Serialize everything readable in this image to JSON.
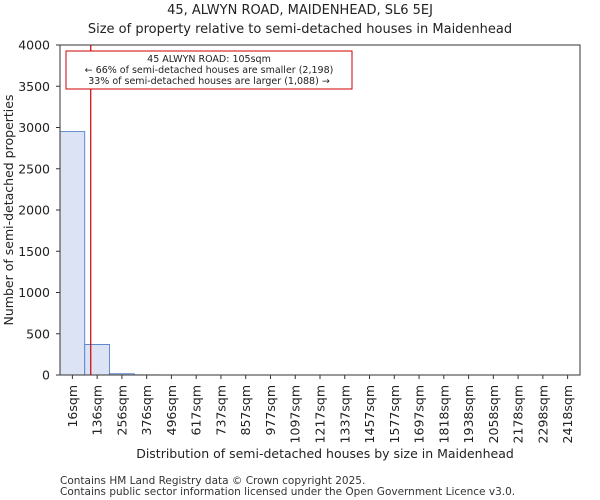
{
  "chart_data": {
    "type": "bar",
    "title": "45, ALWYN ROAD, MAIDENHEAD, SL6 5EJ",
    "subtitle": "Size of property relative to semi-detached houses in Maidenhead",
    "xlabel": "Distribution of semi-detached houses by size in Maidenhead",
    "ylabel": "Number of semi-detached properties",
    "categories": [
      "16sqm",
      "136sqm",
      "256sqm",
      "376sqm",
      "496sqm",
      "617sqm",
      "737sqm",
      "857sqm",
      "977sqm",
      "1097sqm",
      "1217sqm",
      "1337sqm",
      "1457sqm",
      "1577sqm",
      "1697sqm",
      "1818sqm",
      "1938sqm",
      "2058sqm",
      "2178sqm",
      "2298sqm",
      "2418sqm"
    ],
    "values": [
      2950,
      370,
      15,
      2,
      1,
      0,
      0,
      0,
      0,
      0,
      0,
      0,
      0,
      0,
      0,
      0,
      0,
      0,
      0,
      0,
      0
    ],
    "ylim": [
      0,
      4000
    ],
    "yticks": [
      0,
      500,
      1000,
      1500,
      2000,
      2500,
      3000,
      3500,
      4000
    ],
    "grid": false,
    "bar_color": "#dce3f5",
    "bar_edge_color": "#4472c4",
    "marker": {
      "value": 105,
      "color": "#cc0000",
      "lines": [
        "45 ALWYN ROAD: 105sqm",
        "← 66% of semi-detached houses are smaller (2,198)",
        "33% of semi-detached houses are larger (1,088) →"
      ]
    }
  },
  "footer": {
    "line1": "Contains HM Land Registry data © Crown copyright 2025.",
    "line2": "Contains public sector information licensed under the Open Government Licence v3.0."
  }
}
